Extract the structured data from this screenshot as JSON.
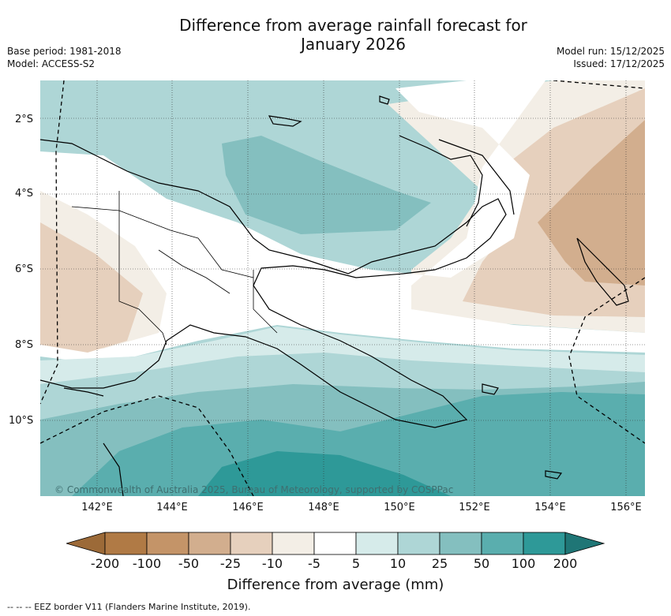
{
  "title_line1": "Difference from average rainfall forecast for",
  "title_line2": "January 2026",
  "base_period": "Base period: 1981-2018",
  "model": "Model: ACCESS-S2",
  "model_run": "Model run: 15/12/2025",
  "issued": "Issued: 17/12/2025",
  "latitude_labels": [
    "2°S",
    "4°S",
    "6°S",
    "8°S",
    "10°S"
  ],
  "longitude_labels": [
    "142°E",
    "144°E",
    "146°E",
    "148°E",
    "150°E",
    "152°E",
    "154°E",
    "156°E"
  ],
  "copyright": "© Commonwealth of Australia 2025, Bureau of Meteorology, supported by COSPPac",
  "colorbar": {
    "title": "Difference from average (mm)",
    "tick_labels": [
      "-200",
      "-100",
      "-50",
      "-25",
      "-10",
      "-5",
      "5",
      "10",
      "25",
      "50",
      "100",
      "200"
    ],
    "colors": [
      "#9c6a38",
      "#b07a45",
      "#c49468",
      "#d2ae8e",
      "#e6d0bd",
      "#f3eee6",
      "#ffffff",
      "#d6ebea",
      "#aed6d6",
      "#84bfbf",
      "#5aaeae",
      "#2e9998",
      "#1f7676"
    ]
  },
  "legend_note": "--  --  -- EEZ border V11 (Flanders Marine Institute, 2019)."
}
